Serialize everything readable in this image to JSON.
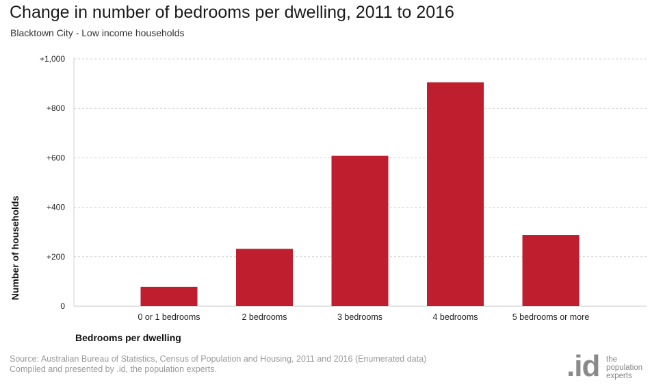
{
  "chart_data": {
    "type": "bar",
    "title": "Change in number of bedrooms per dwelling, 2011 to 2016",
    "subtitle": "Blacktown City - Low income households",
    "xlabel": "Bedrooms per dwelling",
    "ylabel": "Number of households",
    "categories": [
      "0 or 1 bedrooms",
      "2 bedrooms",
      "3 bedrooms",
      "4 bedrooms",
      "5 bedrooms or more"
    ],
    "values": [
      78,
      232,
      608,
      905,
      288
    ],
    "ylim": [
      0,
      1000
    ],
    "yticks": [
      0,
      200,
      400,
      600,
      800,
      1000
    ],
    "ytick_labels": [
      "0",
      "+200",
      "+400",
      "+600",
      "+800",
      "+1,000"
    ],
    "grid": true,
    "legend": "none",
    "bar_color": "#be1e2d"
  },
  "footer": {
    "source_line1": "Source: Australian Bureau of Statistics, Census of Population and Housing, 2011 and 2016 (Enumerated data)",
    "source_line2": "Compiled and presented by .id, the population experts."
  },
  "logo": {
    "mark": ".id",
    "line1": "the",
    "line2": "population",
    "line3": "experts"
  }
}
